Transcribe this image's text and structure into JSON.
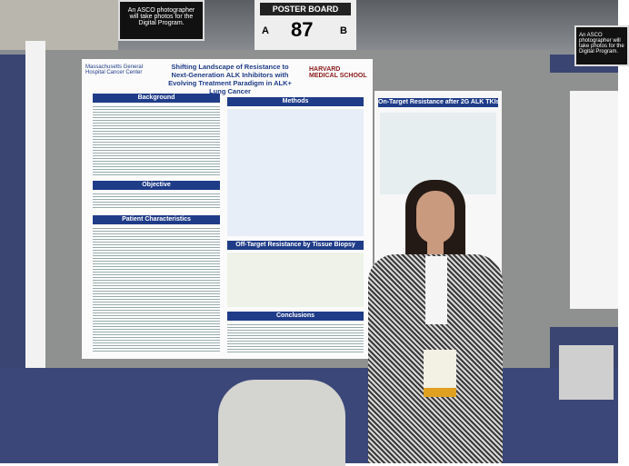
{
  "signs": {
    "asco_left": "An ASCO photographer will take photos for the Digital Program.",
    "poster_board": {
      "label": "POSTER BOARD",
      "left": "A",
      "number": 87,
      "right": "B"
    },
    "asco_right": "An ASCO photographer will take photos for the Digital Program."
  },
  "poster": {
    "title": "Shifting Landscape of Resistance to Next-Generation ALK Inhibitors with Evolving Treatment Paradigm in ALK+ Lung Cancer",
    "logo_left": "Massachusetts General Hospital Cancer Center",
    "logo_right": "HARVARD MEDICAL SCHOOL",
    "sections": {
      "background": "Background",
      "objective": "Objective",
      "patients": "Patient Characteristics",
      "methods": "Methods",
      "off_target": "Off-Target Resistance by Tissue Biopsy",
      "conclusions": "Conclusions",
      "on_target": "On-Target Resistance after 2G ALK TKIs"
    }
  }
}
